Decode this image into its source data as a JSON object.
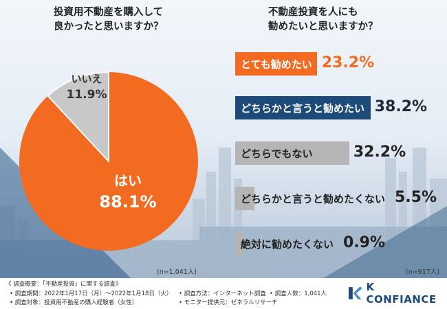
{
  "left_chart": {
    "title_line1": "投資用不動産を購入して",
    "title_line2": "良かったと思いますか？",
    "n_note": "(n=1,041人)"
  },
  "right_chart": {
    "title_line1": "不動産投資を人にも",
    "title_line2": "勧めたいと思いますか？",
    "n_note": "(n=917人)"
  },
  "footer": {
    "heading": "《 調査概要：「不動産投資」に関する調査》",
    "period": "• 調査期間：2022年1月17日（月）〜2022年1月18日（火）",
    "target": "• 調査対象：投資用不動産の購入経験者（女性）",
    "method": "• 調査方法：インターネット調査",
    "provider": "• モニター提供元：ゼネラルリサーチ",
    "count": "• 調査人数：1,041人"
  },
  "logo": {
    "text": "K CONFIANCE",
    "color": "#1d4a78"
  },
  "colors": {
    "orange": "#f26b21",
    "navy": "#1d4a78",
    "gray": "#b5b5b5",
    "pie_gray": "#c8c8c8"
  },
  "chart_data": [
    {
      "type": "pie",
      "title": "投資用不動産を購入して良かったと思いますか？",
      "categories": [
        "はい",
        "いいえ"
      ],
      "values": [
        88.1,
        11.9
      ],
      "value_labels": [
        "88.1%",
        "11.9%"
      ]
    },
    {
      "type": "bar",
      "title": "不動産投資を人にも勧めたいと思いますか？",
      "categories": [
        "とても勧めたい",
        "どちらかと言うと勧めたい",
        "どちらでもない",
        "どちらかと言うと勧めたくない",
        "絶対に勧めたくない"
      ],
      "values": [
        23.2,
        38.2,
        32.2,
        5.5,
        0.9
      ],
      "value_labels": [
        "23.2%",
        "38.2%",
        "32.2%",
        "5.5%",
        "0.9%"
      ]
    }
  ]
}
